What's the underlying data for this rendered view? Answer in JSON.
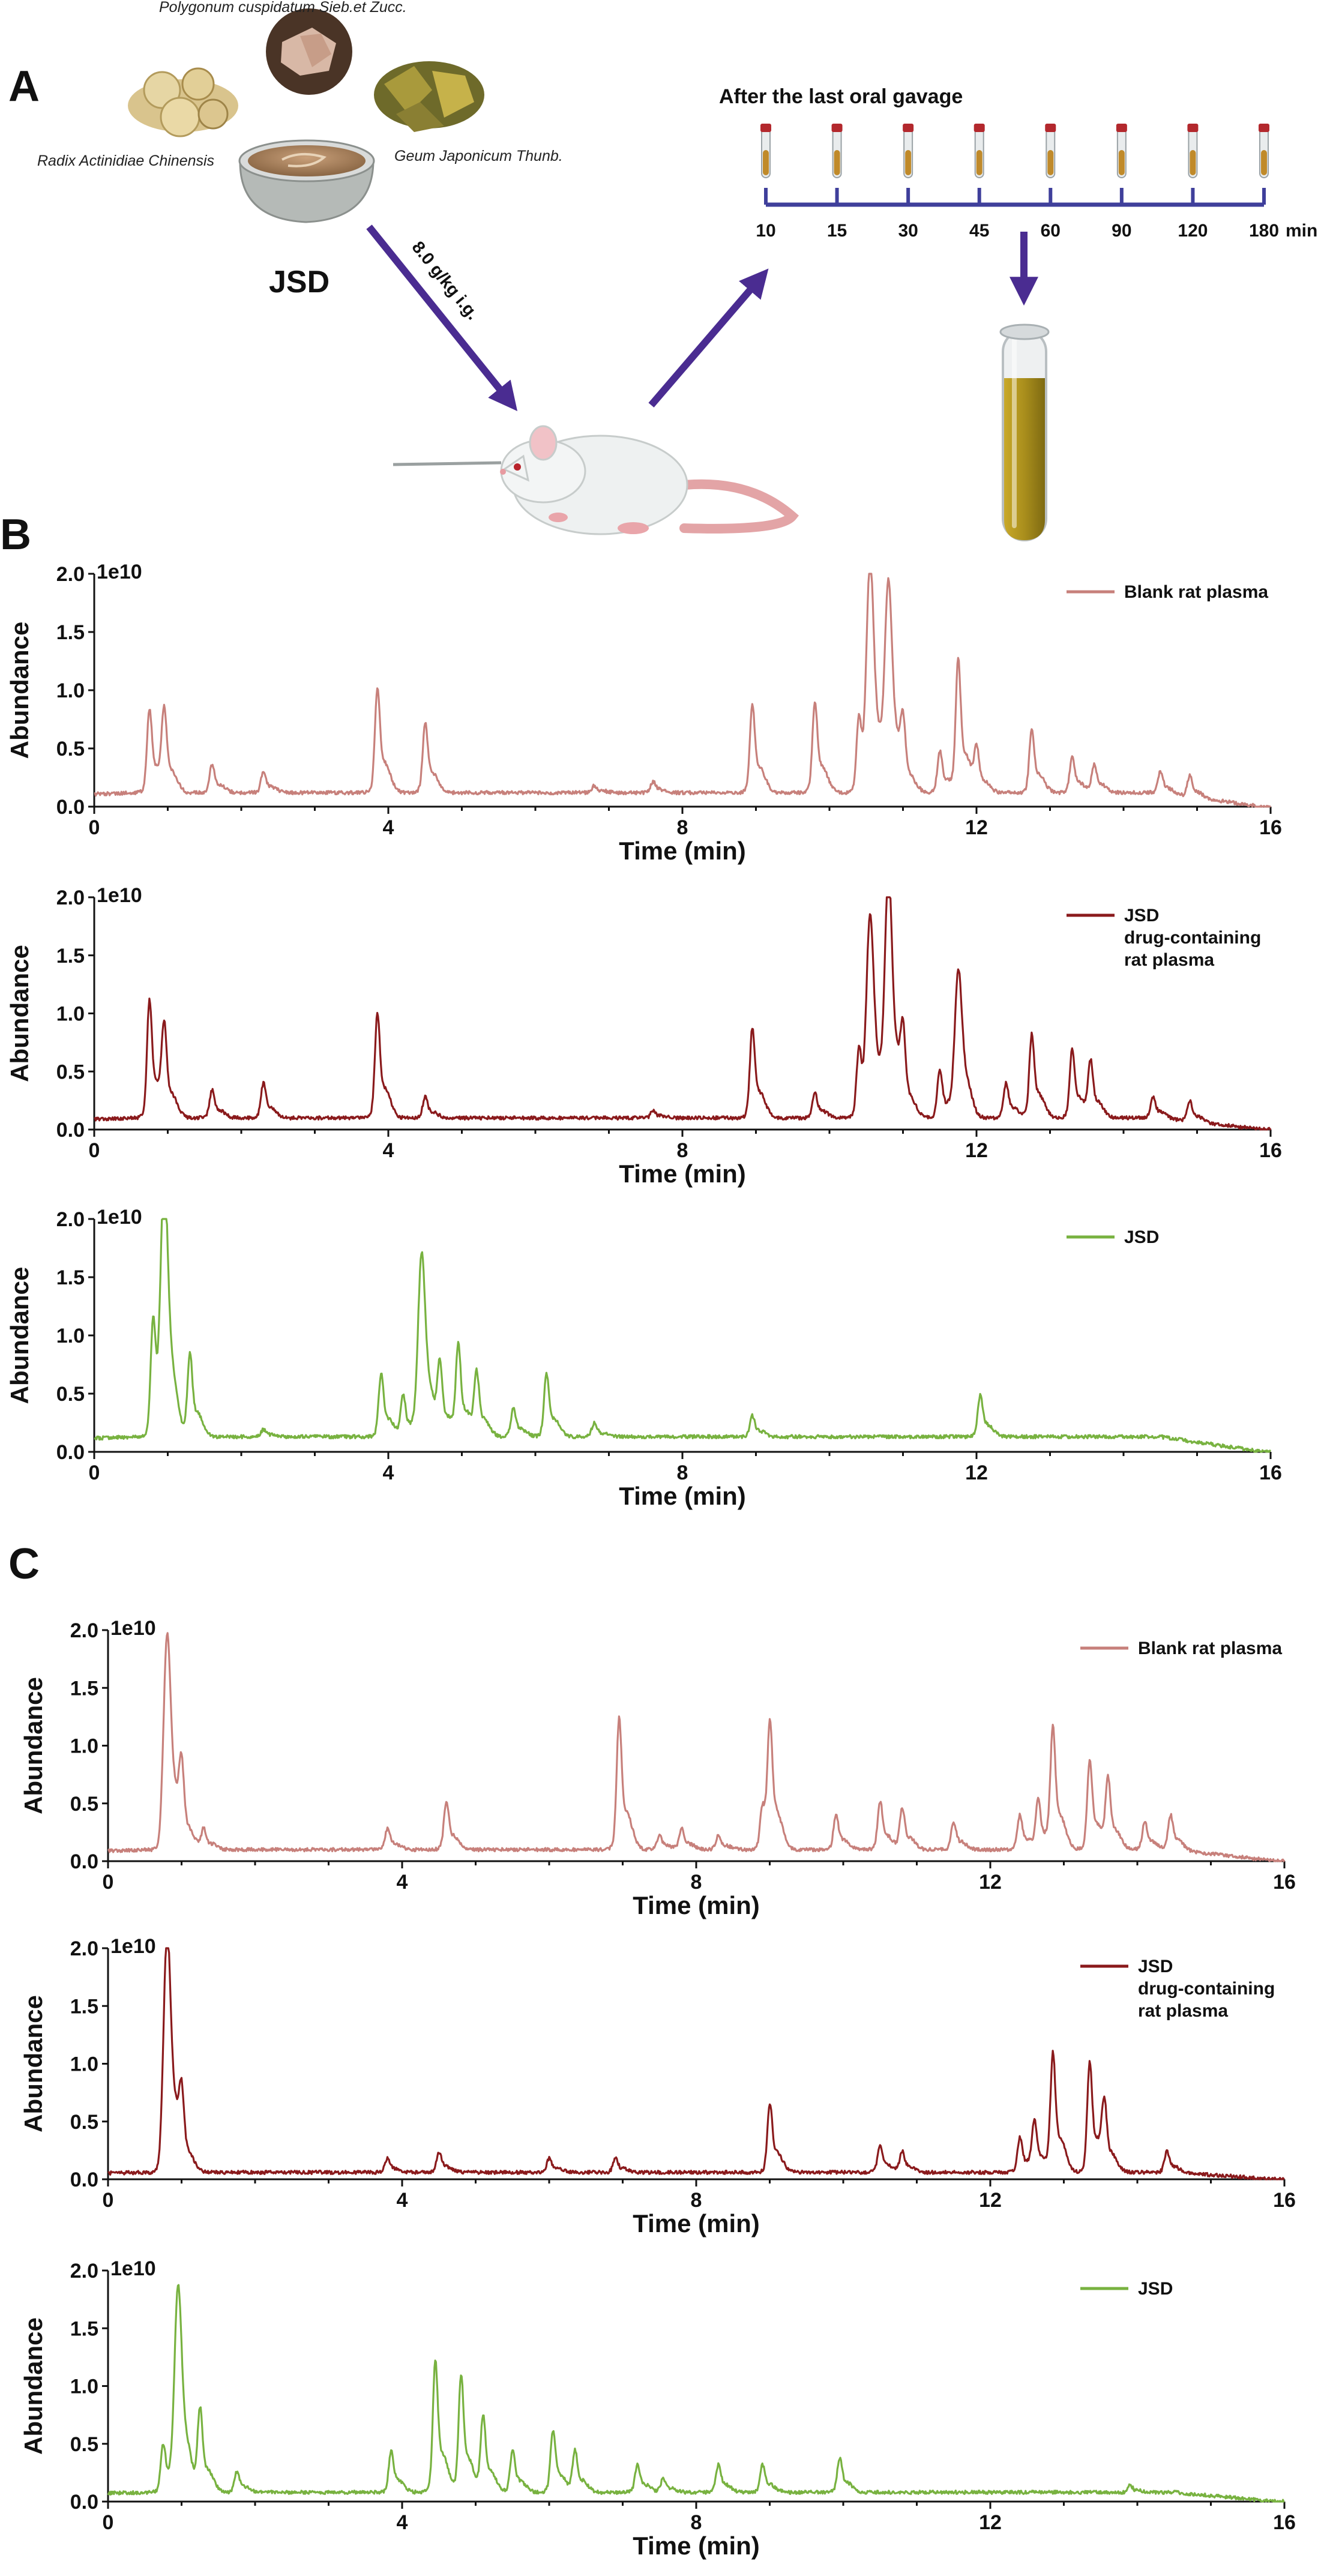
{
  "panel_a": {
    "letter": "A",
    "herbs": {
      "top": "Polygonum cuspidatum Sieb.et Zucc.",
      "left": "Radix Actinidiae Chinensis",
      "right": "Geum Japonicum Thunb."
    },
    "formula": "JSD",
    "dose": "8.0 g/kg i.g.",
    "timeline_title": "After the last oral gavage",
    "timepoints": [
      "10",
      "15",
      "30",
      "45",
      "60",
      "90",
      "120",
      "180"
    ],
    "time_unit": "min",
    "colors": {
      "arrow": "#4a2c91",
      "timeline": "#3f3f9b",
      "plasma": "#a98e1c"
    }
  },
  "panel_b": {
    "letter": "B"
  },
  "panel_c": {
    "letter": "C"
  },
  "chart_data": [
    {
      "panel": "B",
      "type": "line",
      "series": [
        {
          "name": "Blank rat plasma",
          "color": "#c7807b"
        }
      ],
      "xlabel": "Time (min)",
      "ylabel": "Abundance",
      "multiplier": "1e10",
      "xlim": [
        0,
        16
      ],
      "ylim": [
        0,
        2.0
      ],
      "xticks": [
        "0",
        "4",
        "8",
        "12",
        "16"
      ],
      "yticks": [
        "0.0",
        "0.5",
        "1.0",
        "1.5",
        "2.0"
      ],
      "legend": "top-right",
      "baseline": 0.12,
      "peaks": [
        [
          0.75,
          0.6
        ],
        [
          0.95,
          0.55
        ],
        [
          1.6,
          0.2
        ],
        [
          2.3,
          0.15
        ],
        [
          3.85,
          0.75
        ],
        [
          4.5,
          0.5
        ],
        [
          6.8,
          0.05
        ],
        [
          7.6,
          0.08
        ],
        [
          8.95,
          0.63
        ],
        [
          9.8,
          0.65
        ],
        [
          10.4,
          0.55
        ],
        [
          10.55,
          1.55
        ],
        [
          10.8,
          1.45
        ],
        [
          11.0,
          0.4
        ],
        [
          11.5,
          0.3
        ],
        [
          11.75,
          0.95
        ],
        [
          12.0,
          0.3
        ],
        [
          12.75,
          0.45
        ],
        [
          13.3,
          0.25
        ],
        [
          13.6,
          0.2
        ],
        [
          14.5,
          0.15
        ],
        [
          14.9,
          0.15
        ]
      ]
    },
    {
      "panel": "B",
      "type": "line",
      "series": [
        {
          "name": "JSD drug-containing rat plasma",
          "color": "#8a1a1c"
        }
      ],
      "xlabel": "Time (min)",
      "ylabel": "Abundance",
      "multiplier": "1e10",
      "xlim": [
        0,
        16
      ],
      "ylim": [
        0,
        2.0
      ],
      "xticks": [
        "0",
        "4",
        "8",
        "12",
        "16"
      ],
      "yticks": [
        "0.0",
        "0.5",
        "1.0",
        "1.5",
        "2.0"
      ],
      "legend": "top-right",
      "baseline": 0.1,
      "peaks": [
        [
          0.75,
          0.85
        ],
        [
          0.95,
          0.6
        ],
        [
          1.6,
          0.2
        ],
        [
          2.3,
          0.25
        ],
        [
          3.85,
          0.75
        ],
        [
          4.5,
          0.15
        ],
        [
          7.6,
          0.05
        ],
        [
          8.95,
          0.65
        ],
        [
          9.8,
          0.18
        ],
        [
          10.4,
          0.5
        ],
        [
          10.55,
          1.35
        ],
        [
          10.8,
          1.7
        ],
        [
          11.0,
          0.5
        ],
        [
          11.5,
          0.35
        ],
        [
          11.75,
          1.05
        ],
        [
          12.4,
          0.25
        ],
        [
          12.75,
          0.6
        ],
        [
          13.3,
          0.5
        ],
        [
          13.55,
          0.4
        ],
        [
          14.4,
          0.15
        ],
        [
          14.9,
          0.15
        ]
      ]
    },
    {
      "panel": "B",
      "type": "line",
      "series": [
        {
          "name": "JSD",
          "color": "#78b240"
        }
      ],
      "xlabel": "Time (min)",
      "ylabel": "Abundance",
      "multiplier": "1e10",
      "xlim": [
        0,
        16
      ],
      "ylim": [
        0,
        2.0
      ],
      "xticks": [
        "0",
        "4",
        "8",
        "12",
        "16"
      ],
      "yticks": [
        "0.0",
        "0.5",
        "1.0",
        "1.5",
        "2.0"
      ],
      "legend": "top-right",
      "baseline": 0.13,
      "peaks": [
        [
          0.8,
          0.85
        ],
        [
          0.95,
          1.7
        ],
        [
          1.3,
          0.6
        ],
        [
          2.3,
          0.05
        ],
        [
          3.9,
          0.45
        ],
        [
          4.2,
          0.3
        ],
        [
          4.45,
          1.3
        ],
        [
          4.7,
          0.5
        ],
        [
          4.95,
          0.65
        ],
        [
          5.2,
          0.45
        ],
        [
          5.7,
          0.2
        ],
        [
          6.15,
          0.45
        ],
        [
          6.8,
          0.1
        ],
        [
          8.95,
          0.15
        ],
        [
          12.05,
          0.3
        ]
      ]
    },
    {
      "panel": "C",
      "type": "line",
      "series": [
        {
          "name": "Blank rat plasma",
          "color": "#c7807b"
        }
      ],
      "xlabel": "Time (min)",
      "ylabel": "Abundance",
      "multiplier": "1e10",
      "xlim": [
        0,
        16
      ],
      "ylim": [
        0,
        2.0
      ],
      "xticks": [
        "0",
        "4",
        "8",
        "12",
        "16"
      ],
      "yticks": [
        "0.0",
        "0.5",
        "1.0",
        "1.5",
        "2.0"
      ],
      "legend": "top-right",
      "baseline": 0.1,
      "peaks": [
        [
          0.8,
          1.55
        ],
        [
          1.0,
          0.5
        ],
        [
          1.3,
          0.15
        ],
        [
          3.8,
          0.15
        ],
        [
          4.6,
          0.35
        ],
        [
          6.95,
          0.95
        ],
        [
          7.5,
          0.1
        ],
        [
          7.8,
          0.15
        ],
        [
          8.3,
          0.1
        ],
        [
          8.9,
          0.3
        ],
        [
          9.0,
          0.85
        ],
        [
          9.9,
          0.25
        ],
        [
          10.5,
          0.35
        ],
        [
          10.8,
          0.3
        ],
        [
          11.5,
          0.2
        ],
        [
          12.4,
          0.25
        ],
        [
          12.65,
          0.35
        ],
        [
          12.85,
          0.85
        ],
        [
          13.35,
          0.65
        ],
        [
          13.6,
          0.5
        ],
        [
          14.1,
          0.2
        ],
        [
          14.45,
          0.25
        ]
      ]
    },
    {
      "panel": "C",
      "type": "line",
      "series": [
        {
          "name": "JSD drug-containing rat plasma",
          "color": "#8a1a1c"
        }
      ],
      "xlabel": "Time (min)",
      "ylabel": "Abundance",
      "multiplier": "1e10",
      "xlim": [
        0,
        16
      ],
      "ylim": [
        0,
        2.0
      ],
      "xticks": [
        "0",
        "4",
        "8",
        "12",
        "16"
      ],
      "yticks": [
        "0.0",
        "0.5",
        "1.0",
        "1.5",
        "2.0"
      ],
      "legend": "top-right",
      "baseline": 0.06,
      "peaks": [
        [
          0.8,
          1.75
        ],
        [
          1.0,
          0.45
        ],
        [
          3.8,
          0.1
        ],
        [
          4.5,
          0.15
        ],
        [
          6.0,
          0.1
        ],
        [
          6.9,
          0.1
        ],
        [
          9.0,
          0.5
        ],
        [
          10.5,
          0.2
        ],
        [
          10.8,
          0.15
        ],
        [
          12.4,
          0.25
        ],
        [
          12.6,
          0.35
        ],
        [
          12.85,
          0.85
        ],
        [
          13.35,
          0.8
        ],
        [
          13.55,
          0.45
        ],
        [
          14.4,
          0.15
        ]
      ]
    },
    {
      "panel": "C",
      "type": "line",
      "series": [
        {
          "name": "JSD",
          "color": "#78b240"
        }
      ],
      "xlabel": "Time (min)",
      "ylabel": "Abundance",
      "multiplier": "1e10",
      "xlim": [
        0,
        16
      ],
      "ylim": [
        0,
        2.0
      ],
      "xticks": [
        "0",
        "4",
        "8",
        "12",
        "16"
      ],
      "yticks": [
        "0.0",
        "0.5",
        "1.0",
        "1.5",
        "2.0"
      ],
      "legend": "top-right",
      "baseline": 0.08,
      "peaks": [
        [
          0.75,
          0.35
        ],
        [
          0.95,
          1.45
        ],
        [
          1.25,
          0.6
        ],
        [
          1.75,
          0.15
        ],
        [
          3.85,
          0.3
        ],
        [
          4.45,
          0.95
        ],
        [
          4.8,
          0.85
        ],
        [
          5.1,
          0.55
        ],
        [
          5.5,
          0.3
        ],
        [
          6.05,
          0.45
        ],
        [
          6.35,
          0.3
        ],
        [
          7.2,
          0.2
        ],
        [
          7.55,
          0.1
        ],
        [
          8.3,
          0.2
        ],
        [
          8.9,
          0.2
        ],
        [
          9.95,
          0.25
        ],
        [
          13.9,
          0.05
        ]
      ]
    }
  ]
}
